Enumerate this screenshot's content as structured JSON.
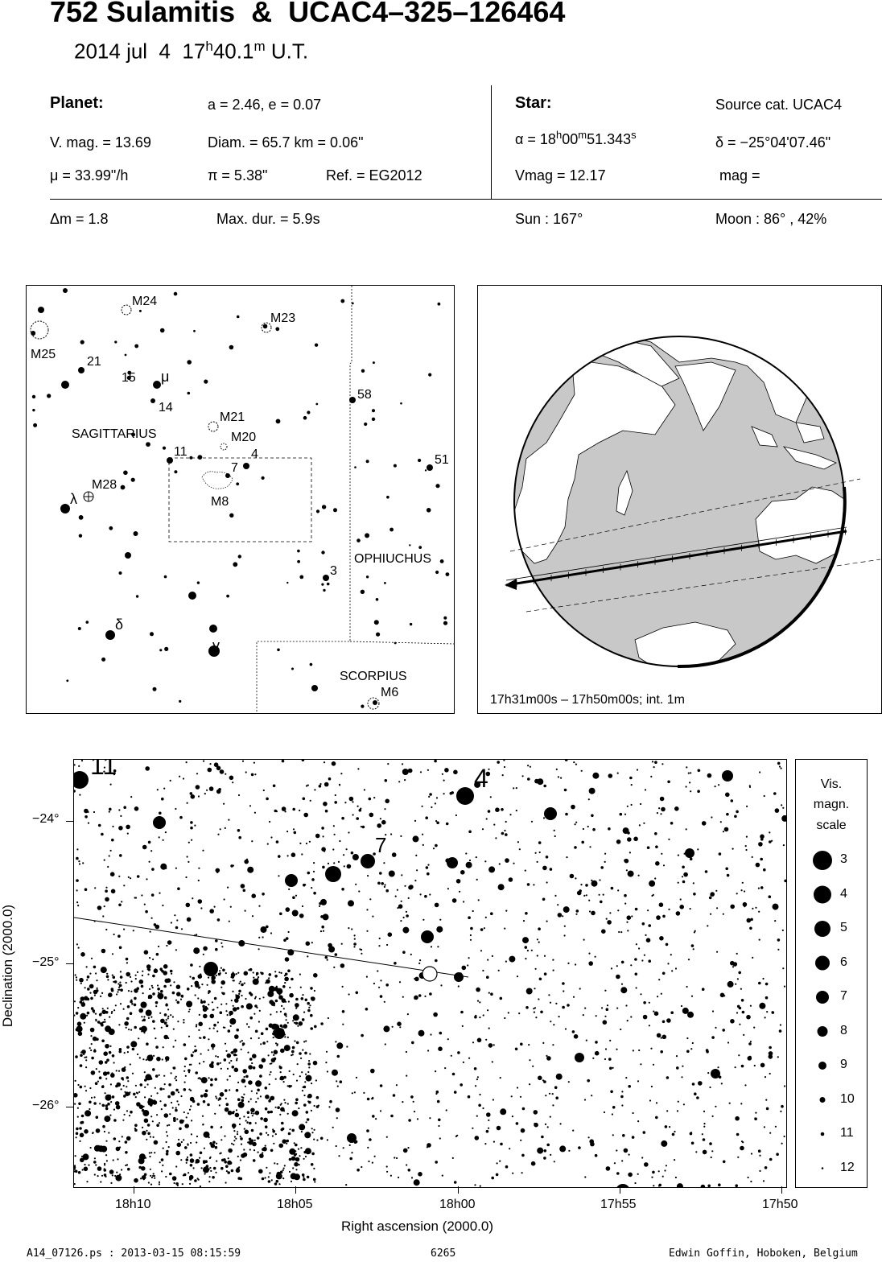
{
  "header": {
    "title": "752 Sulamitis  &  UCAC4–325–126464",
    "date": "2014 jul  4  17",
    "time_h": "h",
    "time_min": "40.1",
    "time_m": "m",
    "time_ut": " U.T."
  },
  "planet": {
    "label": "Planet:",
    "orbit": "a = 2.46, e = 0.07",
    "vmag": "V. mag. = 13.69",
    "diam": "Diam. = 65.7 km = 0.06\"",
    "mu": "μ =  33.99\"/h",
    "pi": "π =  5.38\"",
    "ref": "Ref. = EG2012"
  },
  "star": {
    "label": "Star:",
    "source": "Source cat.  UCAC4",
    "alpha_prefix": "α = 18",
    "alpha_h": "h",
    "alpha_00": "00",
    "alpha_m": "m",
    "alpha_sec": "51.343",
    "alpha_s": "s",
    "delta": "δ = −25°04'07.46\"",
    "vmag": "Vmag = 12.17",
    "mag": "mag ="
  },
  "event": {
    "dm": "Δm = 1.8",
    "maxdur": "Max. dur. = 5.9s",
    "sun": "Sun : 167°",
    "moon": "Moon :  86° , 42%"
  },
  "finder": {
    "labels": {
      "m24": "M24",
      "m23": "M23",
      "m25": "M25",
      "n21": "21",
      "n15": "15",
      "mu": "μ",
      "n14": "14",
      "n58": "58",
      "m21": "M21",
      "m20": "M20",
      "sgr": "SAGITTARIUS",
      "n11": "11",
      "n4": "4",
      "n7": "7",
      "n51": "51",
      "lambda": "λ",
      "m28": "M28",
      "m8": "M8",
      "oph": "OPHIUCHUS",
      "n3": "3",
      "delta": "δ",
      "gamma": "γ",
      "sco": "SCORPIUS",
      "m6": "M6"
    }
  },
  "globe": {
    "caption": "17h31m00s – 17h50m00s; int.  1m"
  },
  "detail": {
    "star_labels": {
      "n11": "11",
      "n4": "4",
      "n7": "7"
    },
    "y_axis_label": "Declination (2000.0)",
    "x_axis_label": "Right ascension (2000.0)",
    "y_ticks": [
      "−24°",
      "−25°",
      "−26°"
    ],
    "x_ticks": [
      "18h10",
      "18h05",
      "18h00",
      "17h55",
      "17h50"
    ]
  },
  "legend": {
    "title_1": "Vis.",
    "title_2": "magn.",
    "title_3": "scale",
    "mags": [
      "3",
      "4",
      "5",
      "6",
      "7",
      "8",
      "9",
      "10",
      "11",
      "12"
    ]
  },
  "footer": {
    "file": "A14_07126.ps : 2013-03-15 08:15:59",
    "number": "6265",
    "author": "Edwin Goffin, Hoboken, Belgium"
  }
}
